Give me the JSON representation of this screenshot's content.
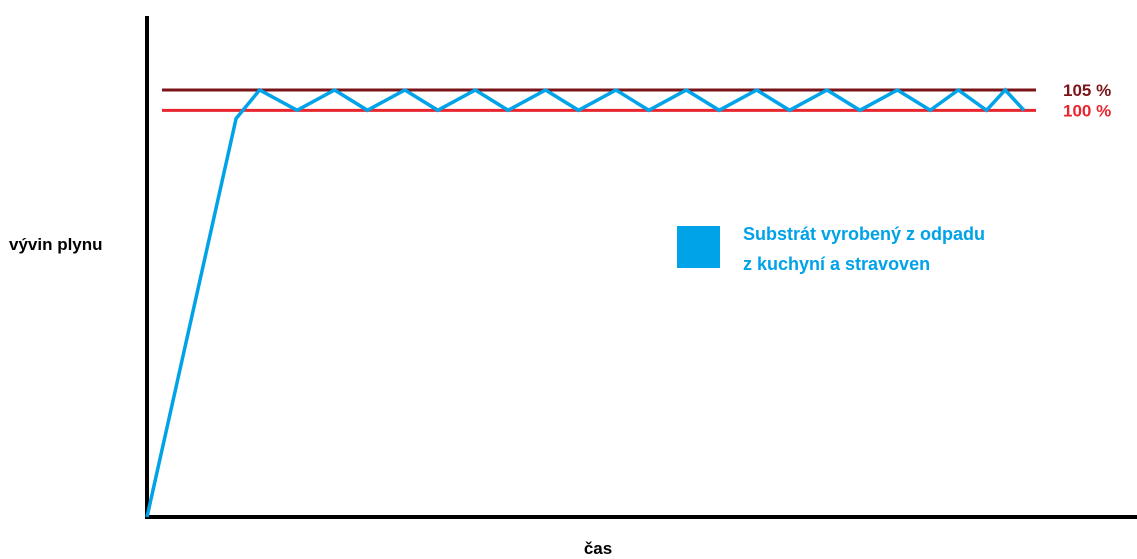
{
  "chart_data": {
    "type": "line",
    "title": "",
    "xlabel": "čas",
    "ylabel": "vývin plynu",
    "grid": false,
    "legend_placement": "center-right",
    "reference_lines": [
      {
        "label": "105 %",
        "value": 105,
        "color": "#7b1418"
      },
      {
        "label": "100 %",
        "value": 100,
        "color": "#e8262f"
      }
    ],
    "legend": {
      "swatch_color": "#00a2e8",
      "lines": [
        "Substrát vyrobený z odpadu",
        "z kuchyní a stravoven"
      ]
    },
    "series": [
      {
        "name": "Substrát vyrobený z odpadu z kuchyní a stravoven",
        "color": "#00a2e8",
        "x": [
          0,
          19,
          24,
          32,
          40,
          47,
          55,
          62,
          70,
          77,
          85,
          92,
          100,
          107,
          115,
          122,
          130,
          137,
          145,
          152,
          160,
          167,
          173,
          179,
          183,
          187
        ],
        "y": [
          0,
          98,
          105,
          100,
          105,
          100,
          105,
          100,
          105,
          100,
          105,
          100,
          105,
          100,
          105,
          100,
          105,
          100,
          105,
          100,
          105,
          100,
          105,
          100,
          105,
          100
        ]
      }
    ]
  }
}
